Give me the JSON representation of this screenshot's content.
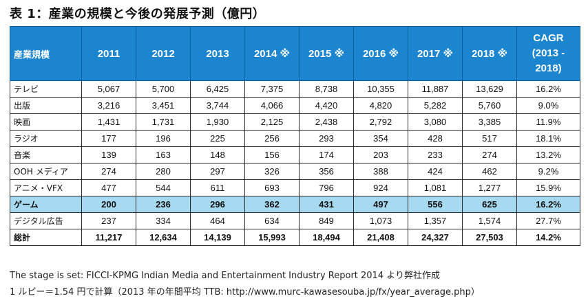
{
  "title": "表 1：産業の規模と今後の発展予測（億円）",
  "header": {
    "industry": "産業規模",
    "years": [
      "2011",
      "2012",
      "2013",
      "2014 ※",
      "2015 ※",
      "2016 ※",
      "2017 ※",
      "2018 ※"
    ],
    "cagr_line1": "CAGR",
    "cagr_line2": "(2013 -",
    "cagr_line3": "2018)"
  },
  "rows": [
    {
      "label": "テレビ",
      "values": [
        "5,067",
        "5,700",
        "6,425",
        "7,375",
        "8,738",
        "10,355",
        "11,887",
        "13,629"
      ],
      "cagr": "16.2%"
    },
    {
      "label": "出版",
      "values": [
        "3,216",
        "3,451",
        "3,744",
        "4,066",
        "4,420",
        "4,820",
        "5,282",
        "5,760"
      ],
      "cagr": "9.0%"
    },
    {
      "label": "映画",
      "values": [
        "1,431",
        "1,731",
        "1,930",
        "2,125",
        "2,438",
        "2,792",
        "3,080",
        "3,385"
      ],
      "cagr": "11.9%"
    },
    {
      "label": "ラジオ",
      "values": [
        "177",
        "196",
        "225",
        "256",
        "293",
        "354",
        "428",
        "517"
      ],
      "cagr": "18.1%"
    },
    {
      "label": "音楽",
      "values": [
        "139",
        "163",
        "148",
        "156",
        "174",
        "203",
        "233",
        "274"
      ],
      "cagr": "13.2%"
    },
    {
      "label": "OOH メディア",
      "values": [
        "274",
        "280",
        "297",
        "326",
        "356",
        "388",
        "424",
        "462"
      ],
      "cagr": "9.2%"
    },
    {
      "label": "アニメ・VFX",
      "values": [
        "477",
        "544",
        "611",
        "693",
        "796",
        "924",
        "1,081",
        "1,277"
      ],
      "cagr": "15.9%"
    },
    {
      "label": "ゲーム",
      "values": [
        "200",
        "236",
        "296",
        "362",
        "431",
        "497",
        "556",
        "625"
      ],
      "cagr": "16.2%"
    },
    {
      "label": "デジタル広告",
      "values": [
        "237",
        "334",
        "464",
        "634",
        "849",
        "1,073",
        "1,357",
        "1,574"
      ],
      "cagr": "27.7%"
    },
    {
      "label": "総計",
      "values": [
        "11,217",
        "12,634",
        "14,139",
        "15,993",
        "18,494",
        "21,408",
        "24,327",
        "27,503"
      ],
      "cagr": "14.2%"
    }
  ],
  "notes": {
    "source": "The stage is set: FICCI-KPMG Indian Media and Entertainment Industry Report 2014 より弊社作成",
    "rate": "1 ルピー＝1.54 円で計算（2013 年の年間平均 TTB: http://www.murc-kawasesouba.jp/fx/year_average.php）"
  },
  "colors": {
    "header_bg": "#1b86cf",
    "highlight_row": "#a7daf0"
  }
}
